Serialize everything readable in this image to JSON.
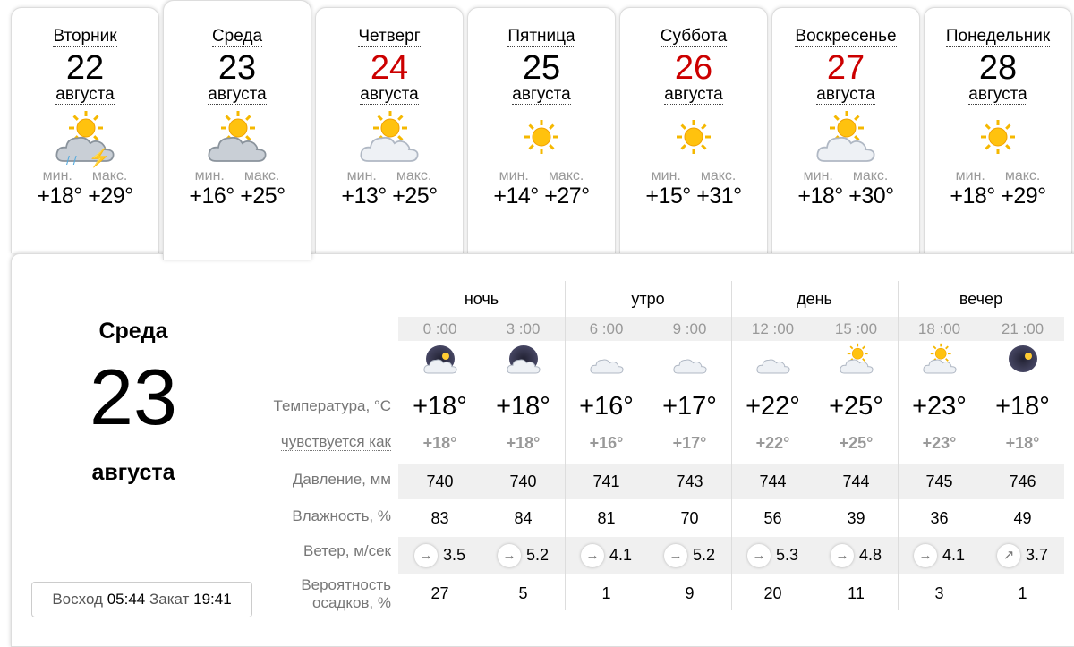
{
  "days": [
    {
      "name": "Вторник",
      "date": "22",
      "month": "августа",
      "icon": "sun-cloud-thunderstorm-rain-icon",
      "min_label": "мин.",
      "max_label": "макс.",
      "min": "+18°",
      "max": "+29°",
      "red": false,
      "selected": false
    },
    {
      "name": "Среда",
      "date": "23",
      "month": "августа",
      "icon": "sun-heavy-clouds-icon",
      "min_label": "мин.",
      "max_label": "макс.",
      "min": "+16°",
      "max": "+25°",
      "red": false,
      "selected": true
    },
    {
      "name": "Четверг",
      "date": "24",
      "month": "августа",
      "icon": "sun-cloud-icon",
      "min_label": "мин.",
      "max_label": "макс.",
      "min": "+13°",
      "max": "+25°",
      "red": true,
      "selected": false
    },
    {
      "name": "Пятница",
      "date": "25",
      "month": "августа",
      "icon": "sun-icon",
      "min_label": "мин.",
      "max_label": "макс.",
      "min": "+14°",
      "max": "+27°",
      "red": false,
      "selected": false
    },
    {
      "name": "Суббота",
      "date": "26",
      "month": "августа",
      "icon": "sun-icon",
      "min_label": "мин.",
      "max_label": "макс.",
      "min": "+15°",
      "max": "+31°",
      "red": true,
      "selected": false
    },
    {
      "name": "Воскресенье",
      "date": "27",
      "month": "августа",
      "icon": "sun-clouds-icon",
      "min_label": "мин.",
      "max_label": "макс.",
      "min": "+18°",
      "max": "+30°",
      "red": true,
      "selected": false
    },
    {
      "name": "Понедельник",
      "date": "28",
      "month": "августа",
      "icon": "sun-icon",
      "min_label": "мин.",
      "max_label": "макс.",
      "min": "+18°",
      "max": "+29°",
      "red": false,
      "selected": false
    }
  ],
  "selected_day": {
    "name": "Среда",
    "date": "23",
    "month": "августа",
    "sunrise_label": "Восход",
    "sunrise": "05:44",
    "sunset_label": "Закат",
    "sunset": "19:41"
  },
  "periods": [
    "ночь",
    "утро",
    "день",
    "вечер"
  ],
  "labels": {
    "temp": "Температура, °C",
    "feels": "чувствуется как",
    "pressure": "Давление, мм",
    "humidity": "Влажность, %",
    "wind": "Ветер, м/сек",
    "precip": "Вероятность осадков, %"
  },
  "hours": [
    {
      "time": "0 :00",
      "icon": "night-moon-cloud-icon",
      "temp": "+18°",
      "feels": "+18°",
      "pressure": "740",
      "humidity": "83",
      "wind": "3.5",
      "wind_dir": "→"
    },
    {
      "time": "3 :00",
      "icon": "night-overcast-icon",
      "temp": "+18°",
      "feels": "+18°",
      "pressure": "740",
      "humidity": "84",
      "wind": "5.2",
      "wind_dir": "→"
    },
    {
      "time": "6 :00",
      "icon": "cloud-icon",
      "temp": "+16°",
      "feels": "+16°",
      "pressure": "741",
      "humidity": "81",
      "wind": "4.1",
      "wind_dir": "→"
    },
    {
      "time": "9 :00",
      "icon": "cloud-icon",
      "temp": "+17°",
      "feels": "+17°",
      "pressure": "743",
      "humidity": "70",
      "wind": "5.2",
      "wind_dir": "→"
    },
    {
      "time": "12 :00",
      "icon": "cloud-icon",
      "temp": "+22°",
      "feels": "+22°",
      "pressure": "744",
      "humidity": "56",
      "wind": "5.3",
      "wind_dir": "→"
    },
    {
      "time": "15 :00",
      "icon": "sun-cloud-icon",
      "temp": "+25°",
      "feels": "+25°",
      "pressure": "744",
      "humidity": "39",
      "wind": "4.8",
      "wind_dir": "→"
    },
    {
      "time": "18 :00",
      "icon": "sun-cloud-icon",
      "temp": "+23°",
      "feels": "+23°",
      "pressure": "745",
      "humidity": "36",
      "wind": "4.1",
      "wind_dir": "→"
    },
    {
      "time": "21 :00",
      "icon": "night-moon-icon",
      "temp": "+18°",
      "feels": "+18°",
      "pressure": "746",
      "humidity": "49",
      "wind": "3.7",
      "wind_dir": "↗"
    }
  ],
  "precip": [
    "27",
    "5",
    "1",
    "9",
    "20",
    "11",
    "3",
    "1"
  ]
}
